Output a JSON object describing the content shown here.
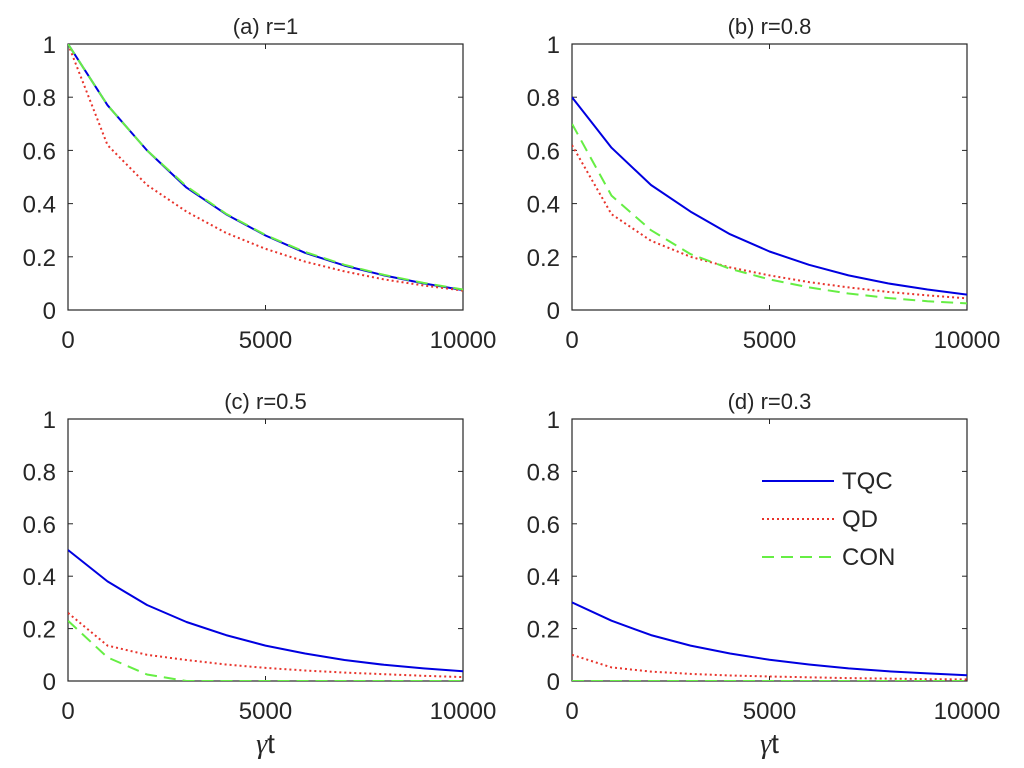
{
  "figure": {
    "xlabel_symbol": "γ",
    "xlabel_rest": "t"
  },
  "legend": {
    "panel": 3,
    "location": "upper-right",
    "entries": [
      {
        "key": "TQC",
        "label": "TQC"
      },
      {
        "key": "QD",
        "label": "QD"
      },
      {
        "key": "CON",
        "label": "CON"
      }
    ]
  },
  "series_styles": {
    "TQC": {
      "color": "#0000e0",
      "dash": "solid"
    },
    "QD": {
      "color": "#e8342c",
      "dash": "dotted"
    },
    "CON": {
      "color": "#66ee44",
      "dash": "dashed"
    }
  },
  "chart_data": [
    {
      "type": "line",
      "title": "(a) r=1",
      "xlabel": "",
      "ylabel": "",
      "xlim": [
        0,
        10000
      ],
      "ylim": [
        0,
        1
      ],
      "xticks": [
        0,
        5000,
        10000
      ],
      "yticks": [
        0,
        0.2,
        0.4,
        0.6,
        0.8,
        1
      ],
      "ytick_labels": [
        "0",
        "0.2",
        "0.4",
        "0.6",
        "0.8",
        "1"
      ],
      "x": [
        0,
        1000,
        2000,
        3000,
        4000,
        5000,
        6000,
        7000,
        8000,
        9000,
        10000
      ],
      "series": [
        {
          "name": "TQC",
          "values": [
            1.0,
            0.77,
            0.6,
            0.46,
            0.36,
            0.28,
            0.215,
            0.167,
            0.13,
            0.1,
            0.075
          ]
        },
        {
          "name": "QD",
          "values": [
            1.0,
            0.62,
            0.47,
            0.37,
            0.29,
            0.23,
            0.182,
            0.145,
            0.115,
            0.092,
            0.073
          ]
        },
        {
          "name": "CON",
          "values": [
            1.0,
            0.77,
            0.6,
            0.465,
            0.362,
            0.282,
            0.218,
            0.17,
            0.132,
            0.102,
            0.077
          ]
        }
      ]
    },
    {
      "type": "line",
      "title": "(b) r=0.8",
      "xlabel": "",
      "ylabel": "",
      "xlim": [
        0,
        10000
      ],
      "ylim": [
        0,
        1
      ],
      "xticks": [
        0,
        5000,
        10000
      ],
      "yticks": [
        0,
        0.2,
        0.4,
        0.6,
        0.8,
        1
      ],
      "ytick_labels": [
        "0",
        "0.2",
        "0.4",
        "0.6",
        "0.8",
        "1"
      ],
      "x": [
        0,
        1000,
        2000,
        3000,
        4000,
        5000,
        6000,
        7000,
        8000,
        9000,
        10000
      ],
      "series": [
        {
          "name": "TQC",
          "values": [
            0.8,
            0.61,
            0.47,
            0.37,
            0.285,
            0.22,
            0.17,
            0.13,
            0.1,
            0.077,
            0.058
          ]
        },
        {
          "name": "QD",
          "values": [
            0.62,
            0.36,
            0.26,
            0.2,
            0.16,
            0.13,
            0.105,
            0.085,
            0.068,
            0.055,
            0.044
          ]
        },
        {
          "name": "CON",
          "values": [
            0.7,
            0.43,
            0.3,
            0.21,
            0.155,
            0.115,
            0.085,
            0.062,
            0.045,
            0.033,
            0.025
          ]
        }
      ]
    },
    {
      "type": "line",
      "title": "(c) r=0.5",
      "xlabel": "γt",
      "ylabel": "",
      "xlim": [
        0,
        10000
      ],
      "ylim": [
        0,
        1
      ],
      "xticks": [
        0,
        5000,
        10000
      ],
      "yticks": [
        0,
        0.2,
        0.4,
        0.6,
        0.8,
        1
      ],
      "ytick_labels": [
        "0",
        "0.2",
        "0.4",
        "0.6",
        "0.8",
        "1"
      ],
      "x": [
        0,
        1000,
        2000,
        3000,
        4000,
        5000,
        6000,
        7000,
        8000,
        9000,
        10000
      ],
      "series": [
        {
          "name": "TQC",
          "values": [
            0.5,
            0.38,
            0.29,
            0.225,
            0.175,
            0.135,
            0.105,
            0.08,
            0.062,
            0.048,
            0.037
          ]
        },
        {
          "name": "QD",
          "values": [
            0.26,
            0.135,
            0.1,
            0.08,
            0.063,
            0.05,
            0.04,
            0.032,
            0.026,
            0.02,
            0.015
          ]
        },
        {
          "name": "CON",
          "values": [
            0.23,
            0.09,
            0.025,
            0.0,
            0.0,
            0.0,
            0.0,
            0.0,
            0.0,
            0.0,
            0.0
          ]
        }
      ]
    },
    {
      "type": "line",
      "title": "(d) r=0.3",
      "xlabel": "γt",
      "ylabel": "",
      "xlim": [
        0,
        10000
      ],
      "ylim": [
        0,
        1
      ],
      "xticks": [
        0,
        5000,
        10000
      ],
      "yticks": [
        0,
        0.2,
        0.4,
        0.6,
        0.8,
        1
      ],
      "ytick_labels": [
        "0",
        "0.2",
        "0.4",
        "0.6",
        "0.8",
        "1"
      ],
      "x": [
        0,
        1000,
        2000,
        3000,
        4000,
        5000,
        6000,
        7000,
        8000,
        9000,
        10000
      ],
      "series": [
        {
          "name": "TQC",
          "values": [
            0.3,
            0.23,
            0.175,
            0.135,
            0.105,
            0.081,
            0.063,
            0.048,
            0.037,
            0.029,
            0.022
          ]
        },
        {
          "name": "QD",
          "values": [
            0.1,
            0.052,
            0.036,
            0.027,
            0.021,
            0.017,
            0.014,
            0.011,
            0.009,
            0.007,
            0.006
          ]
        },
        {
          "name": "CON",
          "values": [
            0.0,
            0.0,
            0.0,
            0.0,
            0.0,
            0.0,
            0.0,
            0.0,
            0.0,
            0.0,
            0.0
          ]
        }
      ]
    }
  ]
}
